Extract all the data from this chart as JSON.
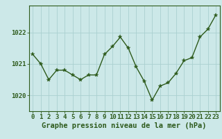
{
  "x": [
    0,
    1,
    2,
    3,
    4,
    5,
    6,
    7,
    8,
    9,
    10,
    11,
    12,
    13,
    14,
    15,
    16,
    17,
    18,
    19,
    20,
    21,
    22,
    23
  ],
  "y": [
    1021.3,
    1021.0,
    1020.5,
    1020.8,
    1020.8,
    1020.65,
    1020.5,
    1020.65,
    1020.65,
    1021.3,
    1021.55,
    1021.85,
    1021.5,
    1020.9,
    1020.45,
    1019.85,
    1020.3,
    1020.4,
    1020.7,
    1021.1,
    1021.2,
    1021.85,
    1022.1,
    1022.55
  ],
  "line_color": "#2d5a1b",
  "marker": "*",
  "marker_color": "#2d5a1b",
  "bg_color": "#cce8e8",
  "grid_color": "#aad0d0",
  "axis_color": "#2d5a1b",
  "xlabel": "Graphe pression niveau de la mer (hPa)",
  "ylabel_ticks": [
    1020,
    1021,
    1022
  ],
  "ylim": [
    1019.5,
    1022.85
  ],
  "xlim": [
    -0.5,
    23.5
  ],
  "xticks": [
    0,
    1,
    2,
    3,
    4,
    5,
    6,
    7,
    8,
    9,
    10,
    11,
    12,
    13,
    14,
    15,
    16,
    17,
    18,
    19,
    20,
    21,
    22,
    23
  ],
  "xlabel_fontsize": 7.5,
  "tick_fontsize": 6.5,
  "marker_size": 4,
  "linewidth": 1.0
}
